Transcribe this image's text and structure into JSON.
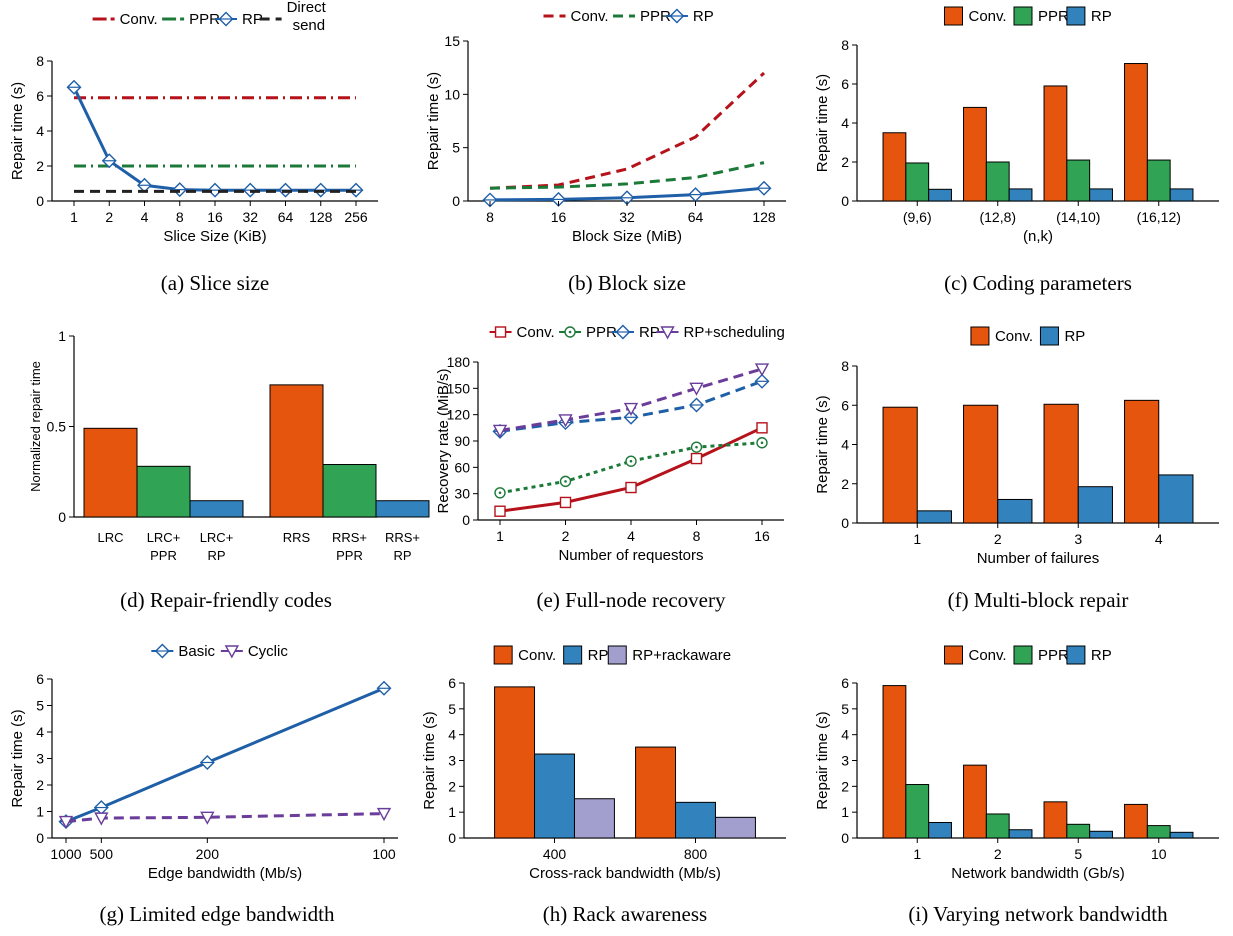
{
  "colors": {
    "conv": "#e6550d",
    "ppr": "#31a354",
    "rp": "#3182bd",
    "rack": "#a29fce",
    "conv_line": "#b5121b",
    "ppr_line": "#1c7a39",
    "rp_line": "#1f5fa8",
    "sched_line": "#6a3d9a",
    "direct_line": "#222222"
  },
  "chart_data": [
    {
      "id": "a",
      "type": "line",
      "caption": "(a) Slice size",
      "xlabel": "Slice Size (KiB)",
      "ylabel": "Repair time (s)",
      "categories": [
        "1",
        "2",
        "4",
        "8",
        "16",
        "32",
        "64",
        "128",
        "256"
      ],
      "ylim": [
        0,
        8
      ],
      "yticks": [
        "0",
        "2",
        "4",
        "6",
        "8"
      ],
      "legend_position": "top",
      "series": [
        {
          "name": "Conv.",
          "style": "dashdot",
          "color": "#b5121b",
          "values": [
            5.9,
            5.9,
            5.9,
            5.9,
            5.9,
            5.9,
            5.9,
            5.9,
            5.9
          ]
        },
        {
          "name": "PPR",
          "style": "dashdot",
          "color": "#1c7a39",
          "values": [
            2.0,
            2.0,
            2.0,
            2.0,
            2.0,
            2.0,
            2.0,
            2.0,
            2.0
          ]
        },
        {
          "name": "RP",
          "style": "solid",
          "marker": "diamond",
          "color": "#1f5fa8",
          "values": [
            6.5,
            2.3,
            0.9,
            0.65,
            0.62,
            0.62,
            0.62,
            0.62,
            0.62
          ]
        },
        {
          "name": "Direct send",
          "name_lines": [
            "Direct",
            "send"
          ],
          "style": "dashed",
          "color": "#222222",
          "values": [
            0.55,
            0.55,
            0.55,
            0.55,
            0.55,
            0.55,
            0.55,
            0.55,
            0.55
          ]
        }
      ]
    },
    {
      "id": "b",
      "type": "line",
      "caption": "(b) Block size",
      "xlabel": "Block Size (MiB)",
      "ylabel": "Repair time (s)",
      "categories": [
        "8",
        "16",
        "32",
        "64",
        "128"
      ],
      "ylim": [
        0,
        15
      ],
      "yticks": [
        "0",
        "5",
        "10",
        "15"
      ],
      "legend_position": "top",
      "series": [
        {
          "name": "Conv.",
          "style": "dashed",
          "color": "#b5121b",
          "values": [
            1.2,
            1.5,
            3.0,
            6.0,
            12.0
          ]
        },
        {
          "name": "PPR",
          "style": "dashed",
          "color": "#1c7a39",
          "values": [
            1.2,
            1.3,
            1.6,
            2.2,
            3.6
          ]
        },
        {
          "name": "RP",
          "style": "solid",
          "marker": "diamond",
          "color": "#1f5fa8",
          "values": [
            0.1,
            0.15,
            0.3,
            0.6,
            1.2
          ]
        }
      ]
    },
    {
      "id": "c",
      "type": "bar",
      "caption": "(c) Coding parameters",
      "xlabel": "(n,k)",
      "ylabel": "Repair time (s)",
      "categories": [
        "(9,6)",
        "(12,8)",
        "(14,10)",
        "(16,12)"
      ],
      "ylim": [
        0,
        8
      ],
      "yticks": [
        "0",
        "2",
        "4",
        "6",
        "8"
      ],
      "legend_position": "top",
      "series": [
        {
          "name": "Conv.",
          "color": "#e6550d",
          "values": [
            3.5,
            4.8,
            5.9,
            7.05
          ]
        },
        {
          "name": "PPR",
          "color": "#31a354",
          "values": [
            1.95,
            2.0,
            2.1,
            2.1
          ]
        },
        {
          "name": "RP",
          "color": "#3182bd",
          "values": [
            0.6,
            0.62,
            0.62,
            0.62
          ]
        }
      ]
    },
    {
      "id": "d",
      "type": "bar",
      "caption": "(d) Repair-friendly codes",
      "xlabel": "",
      "ylabel": "Normalized repair time",
      "ylim": [
        0,
        1
      ],
      "yticks": [
        "0",
        "0.5",
        "1"
      ],
      "bars": [
        {
          "label_lines": [
            "LRC"
          ],
          "color": "#e6550d",
          "value": 0.49
        },
        {
          "label_lines": [
            "LRC+",
            "PPR"
          ],
          "color": "#31a354",
          "value": 0.28
        },
        {
          "label_lines": [
            "LRC+",
            "RP"
          ],
          "color": "#3182bd",
          "value": 0.09
        },
        {
          "label_lines": [
            "RRS"
          ],
          "color": "#e6550d",
          "value": 0.73
        },
        {
          "label_lines": [
            "RRS+",
            "PPR"
          ],
          "color": "#31a354",
          "value": 0.29
        },
        {
          "label_lines": [
            "RRS+",
            "RP"
          ],
          "color": "#3182bd",
          "value": 0.09
        }
      ]
    },
    {
      "id": "e",
      "type": "line",
      "caption": "(e) Full-node recovery",
      "xlabel": "Number of requestors",
      "ylabel": "Recovery rate (MiB/s)",
      "categories": [
        "1",
        "2",
        "4",
        "8",
        "16"
      ],
      "ylim": [
        0,
        180
      ],
      "yticks": [
        "0",
        "30",
        "60",
        "90",
        "120",
        "150",
        "180"
      ],
      "legend_position": "top",
      "series": [
        {
          "name": "Conv.",
          "style": "solid",
          "marker": "square",
          "color": "#b5121b",
          "values": [
            10,
            20,
            37,
            70,
            105
          ]
        },
        {
          "name": "PPR",
          "style": "dotted",
          "marker": "circle",
          "color": "#1c7a39",
          "values": [
            31,
            44,
            67,
            83,
            88
          ]
        },
        {
          "name": "RP",
          "style": "dashed",
          "marker": "diamond",
          "color": "#1f5fa8",
          "values": [
            101,
            111,
            117,
            131,
            158
          ]
        },
        {
          "name": "RP+scheduling",
          "style": "dashed",
          "marker": "triangle",
          "color": "#6a3d9a",
          "values": [
            102,
            114,
            127,
            150,
            172
          ]
        }
      ]
    },
    {
      "id": "f",
      "type": "bar",
      "caption": "(f) Multi-block repair",
      "xlabel": "Number of failures",
      "ylabel": "Repair time (s)",
      "categories": [
        "1",
        "2",
        "3",
        "4"
      ],
      "ylim": [
        0,
        8
      ],
      "yticks": [
        "0",
        "2",
        "4",
        "6",
        "8"
      ],
      "legend_position": "top",
      "series": [
        {
          "name": "Conv.",
          "color": "#e6550d",
          "values": [
            5.9,
            6.0,
            6.05,
            6.25
          ]
        },
        {
          "name": "RP",
          "color": "#3182bd",
          "values": [
            0.62,
            1.2,
            1.85,
            2.45
          ]
        }
      ]
    },
    {
      "id": "g",
      "type": "line",
      "caption": "(g) Limited edge bandwidth",
      "xlabel": "Edge bandwidth (Mb/s)",
      "ylabel": "Repair time (s)",
      "x_scale": "reciprocal",
      "x_ticks": [
        1000,
        500,
        200,
        100
      ],
      "ylim": [
        0,
        6
      ],
      "yticks": [
        "0",
        "1",
        "2",
        "3",
        "4",
        "5",
        "6"
      ],
      "legend_position": "top",
      "series": [
        {
          "name": "Basic",
          "style": "solid",
          "marker": "diamond",
          "color": "#1f5fa8",
          "x": [
            1000,
            500,
            200,
            100
          ],
          "values": [
            0.62,
            1.15,
            2.85,
            5.65
          ]
        },
        {
          "name": "Cyclic",
          "style": "dashed",
          "marker": "triangle",
          "color": "#6a3d9a",
          "x": [
            1000,
            500,
            200,
            100
          ],
          "values": [
            0.62,
            0.75,
            0.78,
            0.92
          ]
        }
      ]
    },
    {
      "id": "h",
      "type": "bar",
      "caption": "(h) Rack awareness",
      "xlabel": "Cross-rack bandwidth (Mb/s)",
      "ylabel": "Repair time (s)",
      "categories": [
        "400",
        "800"
      ],
      "ylim": [
        0,
        6
      ],
      "yticks": [
        "0",
        "1",
        "2",
        "3",
        "4",
        "5",
        "6"
      ],
      "legend_position": "top",
      "series": [
        {
          "name": "Conv.",
          "color": "#e6550d",
          "values": [
            5.85,
            3.52
          ]
        },
        {
          "name": "RP",
          "color": "#3182bd",
          "values": [
            3.25,
            1.38
          ]
        },
        {
          "name": "RP+rackaware",
          "color": "#a29fce",
          "values": [
            1.52,
            0.8
          ]
        }
      ]
    },
    {
      "id": "i",
      "type": "bar",
      "caption": "(i) Varying network bandwidth",
      "xlabel": "Network bandwidth (Gb/s)",
      "ylabel": "Repair time (s)",
      "categories": [
        "1",
        "2",
        "5",
        "10"
      ],
      "ylim": [
        0,
        6
      ],
      "yticks": [
        "0",
        "1",
        "2",
        "3",
        "4",
        "5",
        "6"
      ],
      "legend_position": "top",
      "series": [
        {
          "name": "Conv.",
          "color": "#e6550d",
          "values": [
            5.9,
            2.82,
            1.4,
            1.3
          ]
        },
        {
          "name": "PPR",
          "color": "#31a354",
          "values": [
            2.07,
            0.93,
            0.53,
            0.48
          ]
        },
        {
          "name": "RP",
          "color": "#3182bd",
          "values": [
            0.6,
            0.32,
            0.26,
            0.22
          ]
        }
      ]
    }
  ]
}
